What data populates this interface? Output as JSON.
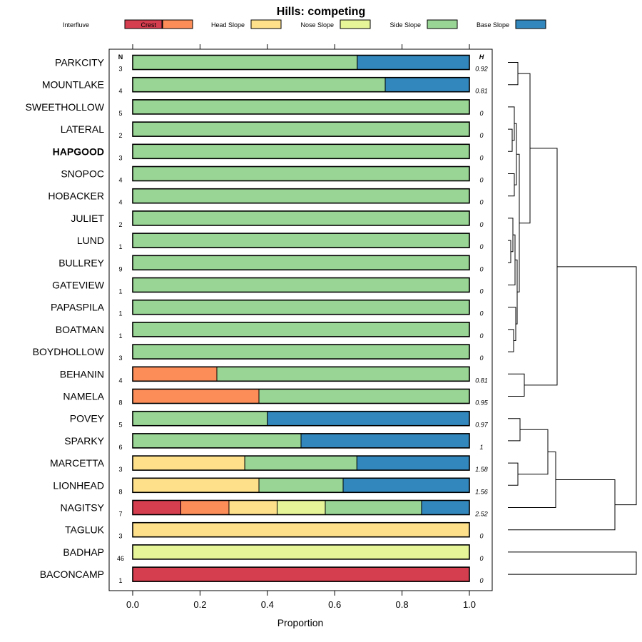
{
  "chart_data": {
    "type": "bar",
    "orientation": "horizontal",
    "stacked": true,
    "title": "Hills: competing",
    "xlabel": "Proportion",
    "ylabel": "",
    "xlim": [
      0,
      1
    ],
    "x_ticks": [
      "0.0",
      "0.2",
      "0.4",
      "0.6",
      "0.8",
      "1.0"
    ],
    "n_header": "N",
    "h_header": "H",
    "highlight": "HAPGOOD",
    "legend_position": "top",
    "dendrogram": "right",
    "series": [
      {
        "name": "Interfluve",
        "color": "#d53e4f"
      },
      {
        "name": "Crest",
        "color": "#fc8d59"
      },
      {
        "name": "Head Slope",
        "color": "#fee08b"
      },
      {
        "name": "Nose Slope",
        "color": "#e6f598"
      },
      {
        "name": "Side Slope",
        "color": "#99d594"
      },
      {
        "name": "Base Slope",
        "color": "#3288bd"
      }
    ],
    "rows": [
      {
        "label": "PARKCITY",
        "n": "3",
        "h": "0.92",
        "values": [
          0,
          0,
          0,
          0,
          0.667,
          0.333
        ]
      },
      {
        "label": "MOUNTLAKE",
        "n": "4",
        "h": "0.81",
        "values": [
          0,
          0,
          0,
          0,
          0.75,
          0.25
        ]
      },
      {
        "label": "SWEETHOLLOW",
        "n": "5",
        "h": "0",
        "values": [
          0,
          0,
          0,
          0,
          1,
          0
        ]
      },
      {
        "label": "LATERAL",
        "n": "2",
        "h": "0",
        "values": [
          0,
          0,
          0,
          0,
          1,
          0
        ]
      },
      {
        "label": "HAPGOOD",
        "n": "3",
        "h": "0",
        "values": [
          0,
          0,
          0,
          0,
          1,
          0
        ]
      },
      {
        "label": "SNOPOC",
        "n": "4",
        "h": "0",
        "values": [
          0,
          0,
          0,
          0,
          1,
          0
        ]
      },
      {
        "label": "HOBACKER",
        "n": "4",
        "h": "0",
        "values": [
          0,
          0,
          0,
          0,
          1,
          0
        ]
      },
      {
        "label": "JULIET",
        "n": "2",
        "h": "0",
        "values": [
          0,
          0,
          0,
          0,
          1,
          0
        ]
      },
      {
        "label": "LUND",
        "n": "1",
        "h": "0",
        "values": [
          0,
          0,
          0,
          0,
          1,
          0
        ]
      },
      {
        "label": "BULLREY",
        "n": "9",
        "h": "0",
        "values": [
          0,
          0,
          0,
          0,
          1,
          0
        ]
      },
      {
        "label": "GATEVIEW",
        "n": "1",
        "h": "0",
        "values": [
          0,
          0,
          0,
          0,
          1,
          0
        ]
      },
      {
        "label": "PAPASPILA",
        "n": "1",
        "h": "0",
        "values": [
          0,
          0,
          0,
          0,
          1,
          0
        ]
      },
      {
        "label": "BOATMAN",
        "n": "1",
        "h": "0",
        "values": [
          0,
          0,
          0,
          0,
          1,
          0
        ]
      },
      {
        "label": "BOYDHOLLOW",
        "n": "3",
        "h": "0",
        "values": [
          0,
          0,
          0,
          0,
          1,
          0
        ]
      },
      {
        "label": "BEHANIN",
        "n": "4",
        "h": "0.81",
        "values": [
          0,
          0.25,
          0,
          0,
          0.75,
          0
        ]
      },
      {
        "label": "NAMELA",
        "n": "8",
        "h": "0.95",
        "values": [
          0,
          0.375,
          0,
          0,
          0.625,
          0
        ]
      },
      {
        "label": "POVEY",
        "n": "5",
        "h": "0.97",
        "values": [
          0,
          0,
          0,
          0,
          0.4,
          0.6
        ]
      },
      {
        "label": "SPARKY",
        "n": "6",
        "h": "1",
        "values": [
          0,
          0,
          0,
          0,
          0.5,
          0.5
        ]
      },
      {
        "label": "MARCETTA",
        "n": "3",
        "h": "1.58",
        "values": [
          0,
          0,
          0.333,
          0,
          0.333,
          0.334
        ]
      },
      {
        "label": "LIONHEAD",
        "n": "8",
        "h": "1.56",
        "values": [
          0,
          0,
          0.375,
          0,
          0.25,
          0.375
        ]
      },
      {
        "label": "NAGITSY",
        "n": "7",
        "h": "2.52",
        "values": [
          0.143,
          0.143,
          0.143,
          0.143,
          0.286,
          0.142
        ]
      },
      {
        "label": "TAGLUK",
        "n": "3",
        "h": "0",
        "values": [
          0,
          0,
          1,
          0,
          0,
          0
        ]
      },
      {
        "label": "BADHAP",
        "n": "46",
        "h": "0",
        "values": [
          0,
          0,
          0,
          1,
          0,
          0
        ]
      },
      {
        "label": "BACONCAMP",
        "n": "1",
        "h": "0",
        "values": [
          1,
          0,
          0,
          0,
          0,
          0
        ]
      }
    ]
  }
}
